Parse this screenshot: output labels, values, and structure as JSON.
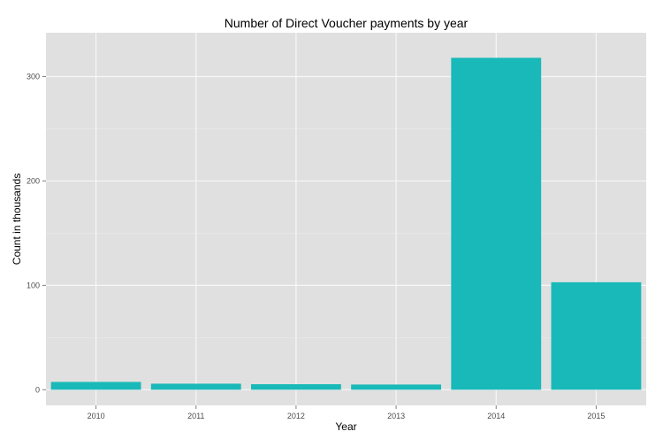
{
  "chart_data": {
    "type": "bar",
    "title": "Number of Direct Voucher payments by year",
    "xlabel": "Year",
    "ylabel": "Count in thousands",
    "categories": [
      "2010",
      "2011",
      "2012",
      "2013",
      "2014",
      "2015"
    ],
    "values": [
      7.5,
      5.8,
      5.3,
      5.0,
      318,
      103
    ],
    "ylim": [
      -15,
      342
    ],
    "yticks": [
      0,
      100,
      200,
      300
    ],
    "grid": true,
    "legend": "none",
    "colors": {
      "bar": "#1ab9b9",
      "panel": "#e0e0e0",
      "grid_major": "#f7f7f7",
      "grid_minor": "#ebebeb"
    }
  }
}
